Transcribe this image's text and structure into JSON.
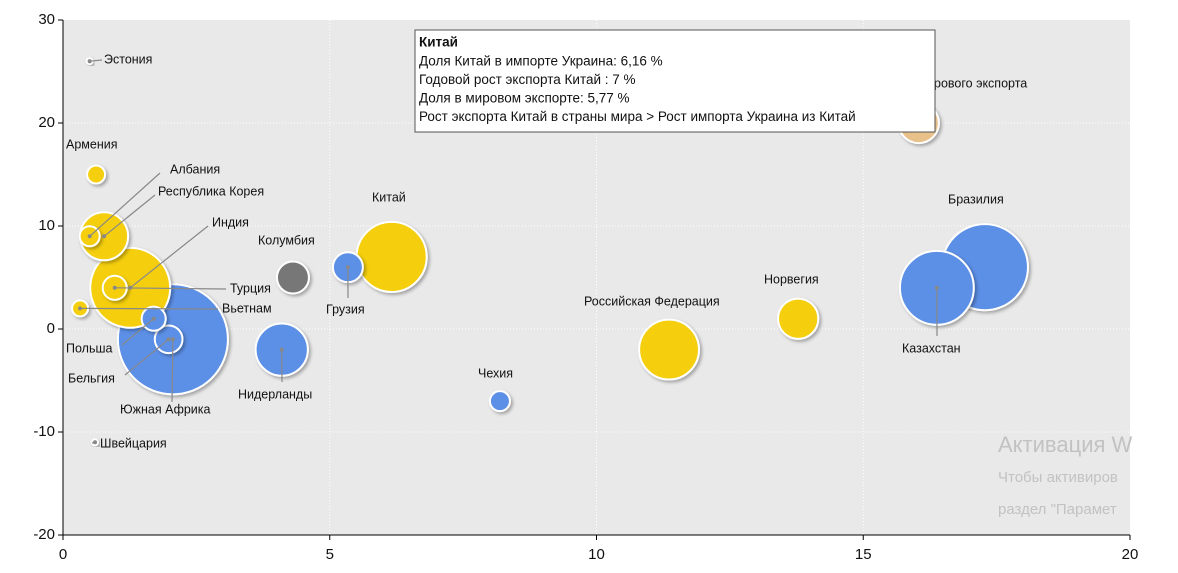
{
  "chart_data": {
    "type": "bubble",
    "xlim": [
      0,
      20
    ],
    "xticks": [
      0,
      5,
      10,
      15,
      20
    ],
    "ylim": [
      -20,
      30
    ],
    "yticks": [
      -20,
      -10,
      0,
      10,
      20,
      30
    ],
    "grid": true,
    "points": [
      {
        "name": "Эстония",
        "x": 0.5,
        "y": 26,
        "size": 0.04,
        "color": "#8c8c8c"
      },
      {
        "name": "Армения",
        "x": 0.62,
        "y": 15,
        "size": 0.38,
        "color": "#f5cf0f"
      },
      {
        "name": "Албания",
        "x": 0.5,
        "y": 9,
        "size": 0.47,
        "color": "#f5cf0f"
      },
      {
        "name": "Республика Корея",
        "x": 0.77,
        "y": 9,
        "size": 2.7,
        "color": "#f5cf0f"
      },
      {
        "name": "Индия",
        "x": 1.26,
        "y": 4,
        "size": 7.5,
        "color": "#f5cf0f"
      },
      {
        "name": "Турция",
        "x": 0.97,
        "y": 4,
        "size": 0.68,
        "color": "#f5cf0f"
      },
      {
        "name": "Вьетнам",
        "x": 0.32,
        "y": 2,
        "size": 0.3,
        "color": "#f5cf0f"
      },
      {
        "name": "Польша",
        "x": 1.7,
        "y": 1,
        "size": 0.68,
        "color": "#5b8fe6"
      },
      {
        "name": "Бельгия",
        "x": 1.98,
        "y": -1,
        "size": 0.9,
        "color": "#5b8fe6"
      },
      {
        "name": "Южная Африка",
        "x": 2.06,
        "y": -1,
        "size": 14.2,
        "color": "#5b8fe6"
      },
      {
        "name": "Колумбия",
        "x": 4.31,
        "y": 5,
        "size": 1.2,
        "color": "#777777"
      },
      {
        "name": "Нидерланды",
        "x": 4.1,
        "y": -2,
        "size": 3.2,
        "color": "#5b8fe6"
      },
      {
        "name": "Грузия",
        "x": 5.34,
        "y": 6,
        "size": 1.05,
        "color": "#5b8fe6"
      },
      {
        "name": "Китай",
        "x": 6.16,
        "y": 7,
        "size": 5.77,
        "color": "#f5cf0f"
      },
      {
        "name": "Чехия",
        "x": 8.19,
        "y": -7,
        "size": 0.47,
        "color": "#5b8fe6"
      },
      {
        "name": "Российская Федерация",
        "x": 11.36,
        "y": -2,
        "size": 4.2,
        "color": "#f5cf0f"
      },
      {
        "name": "Норвегия",
        "x": 13.78,
        "y": 1,
        "size": 1.9,
        "color": "#f5cf0f"
      },
      {
        "name": "Казахстан",
        "x": 16.38,
        "y": 4,
        "size": 6.4,
        "color": "#5b8fe6"
      },
      {
        "name": "Бразилия",
        "x": 17.28,
        "y": 6,
        "size": 8.7,
        "color": "#5b8fe6"
      },
      {
        "name": "рового экспорта",
        "x": 16.04,
        "y": 20,
        "size": 1.9,
        "color": "#e8c08a"
      },
      {
        "name": "Швейцария",
        "x": 0.6,
        "y": -11,
        "size": 0.04,
        "color": "#8c8c8c"
      }
    ],
    "tooltip": {
      "title": "Китай",
      "lines": [
        "Доля Китай в импорте Украина: 6,16 %",
        "Годовой рост экспорта Китай : 7 %",
        "Доля в мировом экспорте: 5,77 %",
        "Рост экспорта Китай в страны мира > Рост импорта Украина из Китай"
      ]
    },
    "watermark": [
      "Активация W",
      "Чтобы активиров",
      "раздел \"Парамет"
    ]
  }
}
